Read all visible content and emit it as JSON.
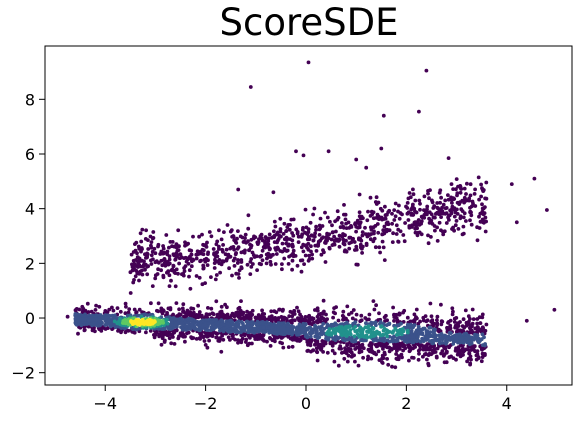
{
  "chart_data": {
    "type": "scatter",
    "title": "ScoreSDE",
    "xlabel": "",
    "ylabel": "",
    "xlim": [
      -5.2,
      5.3
    ],
    "ylim": [
      -2.45,
      9.95
    ],
    "xticks": [
      -4,
      -2,
      0,
      2,
      4
    ],
    "yticks": [
      -2,
      0,
      2,
      4,
      6,
      8
    ],
    "xtick_labels": [
      "−4",
      "−2",
      "0",
      "2",
      "4"
    ],
    "ytick_labels": [
      "−2",
      "0",
      "2",
      "4",
      "6",
      "8"
    ],
    "grid": false,
    "colormap": "viridis",
    "colors": {
      "low_density": "#440154",
      "mid_low": "#3b528b",
      "mid": "#21918c",
      "mid_high": "#5ec962",
      "high_density": "#fde725"
    },
    "clusters": [
      {
        "label": "lower-band",
        "shape": "elongated",
        "x_range": [
          -4.6,
          3.6
        ],
        "y_range": [
          -1.8,
          0.6
        ],
        "density_peaks": [
          {
            "x": -3.25,
            "y": -0.15,
            "level": "high"
          },
          {
            "x": 1.2,
            "y": -0.5,
            "level": "medium"
          }
        ]
      },
      {
        "label": "upper-band",
        "shape": "sloped",
        "x_range": [
          -3.5,
          3.6
        ],
        "y_range": [
          1.2,
          4.9
        ],
        "trend": [
          [
            -3.2,
            2.0
          ],
          [
            -2.3,
            2.2
          ],
          [
            0,
            2.8
          ],
          [
            2.0,
            3.6
          ],
          [
            3.3,
            4.1
          ]
        ],
        "level": "low"
      }
    ],
    "outliers": [
      {
        "x": 0.05,
        "y": 9.35
      },
      {
        "x": -1.1,
        "y": 8.45
      },
      {
        "x": 2.4,
        "y": 9.05
      },
      {
        "x": 2.25,
        "y": 7.55
      },
      {
        "x": 1.55,
        "y": 7.4
      },
      {
        "x": -0.2,
        "y": 6.1
      },
      {
        "x": -0.05,
        "y": 5.95
      },
      {
        "x": 0.45,
        "y": 6.1
      },
      {
        "x": 1.0,
        "y": 5.8
      },
      {
        "x": 1.5,
        "y": 6.2
      },
      {
        "x": 1.2,
        "y": 5.5
      },
      {
        "x": -0.65,
        "y": 4.6
      },
      {
        "x": -1.35,
        "y": 4.7
      },
      {
        "x": 2.9,
        "y": 4.9
      },
      {
        "x": 4.1,
        "y": 4.9
      },
      {
        "x": 4.55,
        "y": 5.1
      },
      {
        "x": 4.8,
        "y": 3.95
      },
      {
        "x": 4.95,
        "y": 0.3
      },
      {
        "x": 4.4,
        "y": -0.1
      },
      {
        "x": -4.75,
        "y": 0.05
      },
      {
        "x": 4.2,
        "y": 3.5
      }
    ]
  }
}
